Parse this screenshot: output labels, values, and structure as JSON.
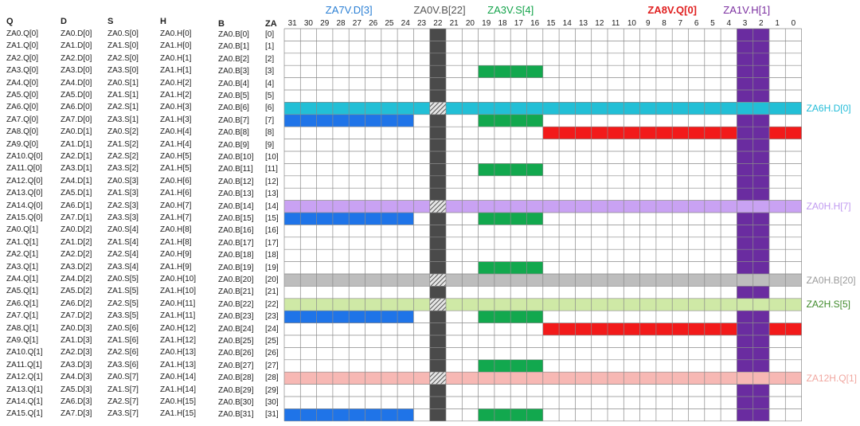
{
  "headers": {
    "q": "Q",
    "d": "D",
    "s": "S",
    "h": "H",
    "b": "B",
    "za": "ZA"
  },
  "columns": {
    "q": [
      "ZA0.Q[0]",
      "ZA1.Q[0]",
      "ZA2.Q[0]",
      "ZA3.Q[0]",
      "ZA4.Q[0]",
      "ZA5.Q[0]",
      "ZA6.Q[0]",
      "ZA7.Q[0]",
      "ZA8.Q[0]",
      "ZA9.Q[0]",
      "ZA10.Q[0]",
      "ZA11.Q[0]",
      "ZA12.Q[0]",
      "ZA13.Q[0]",
      "ZA14.Q[0]",
      "ZA15.Q[0]",
      "ZA0.Q[1]",
      "ZA1.Q[1]",
      "ZA2.Q[1]",
      "ZA3.Q[1]",
      "ZA4.Q[1]",
      "ZA5.Q[1]",
      "ZA6.Q[1]",
      "ZA7.Q[1]",
      "ZA8.Q[1]",
      "ZA9.Q[1]",
      "ZA10.Q[1]",
      "ZA11.Q[1]",
      "ZA12.Q[1]",
      "ZA13.Q[1]",
      "ZA14.Q[1]",
      "ZA15.Q[1]"
    ],
    "d": [
      "ZA0.D[0]",
      "ZA1.D[0]",
      "ZA2.D[0]",
      "ZA3.D[0]",
      "ZA4.D[0]",
      "ZA5.D[0]",
      "ZA6.D[0]",
      "ZA7.D[0]",
      "ZA0.D[1]",
      "ZA1.D[1]",
      "ZA2.D[1]",
      "ZA3.D[1]",
      "ZA4.D[1]",
      "ZA5.D[1]",
      "ZA6.D[1]",
      "ZA7.D[1]",
      "ZA0.D[2]",
      "ZA1.D[2]",
      "ZA2.D[2]",
      "ZA3.D[2]",
      "ZA4.D[2]",
      "ZA5.D[2]",
      "ZA6.D[2]",
      "ZA7.D[2]",
      "ZA0.D[3]",
      "ZA1.D[3]",
      "ZA2.D[3]",
      "ZA3.D[3]",
      "ZA4.D[3]",
      "ZA5.D[3]",
      "ZA6.D[3]",
      "ZA7.D[3]"
    ],
    "s": [
      "ZA0.S[0]",
      "ZA1.S[0]",
      "ZA2.S[0]",
      "ZA3.S[0]",
      "ZA0.S[1]",
      "ZA1.S[1]",
      "ZA2.S[1]",
      "ZA3.S[1]",
      "ZA0.S[2]",
      "ZA1.S[2]",
      "ZA2.S[2]",
      "ZA3.S[2]",
      "ZA0.S[3]",
      "ZA1.S[3]",
      "ZA2.S[3]",
      "ZA3.S[3]",
      "ZA0.S[4]",
      "ZA1.S[4]",
      "ZA2.S[4]",
      "ZA3.S[4]",
      "ZA0.S[5]",
      "ZA1.S[5]",
      "ZA2.S[5]",
      "ZA3.S[5]",
      "ZA0.S[6]",
      "ZA1.S[6]",
      "ZA2.S[6]",
      "ZA3.S[6]",
      "ZA0.S[7]",
      "ZA1.S[7]",
      "ZA2.S[7]",
      "ZA3.S[7]"
    ],
    "h": [
      "ZA0.H[0]",
      "ZA1.H[0]",
      "ZA0.H[1]",
      "ZA1.H[1]",
      "ZA0.H[2]",
      "ZA1.H[2]",
      "ZA0.H[3]",
      "ZA1.H[3]",
      "ZA0.H[4]",
      "ZA1.H[4]",
      "ZA0.H[5]",
      "ZA1.H[5]",
      "ZA0.H[6]",
      "ZA1.H[6]",
      "ZA0.H[7]",
      "ZA1.H[7]",
      "ZA0.H[8]",
      "ZA1.H[8]",
      "ZA0.H[9]",
      "ZA1.H[9]",
      "ZA0.H[10]",
      "ZA1.H[10]",
      "ZA0.H[11]",
      "ZA1.H[11]",
      "ZA0.H[12]",
      "ZA1.H[12]",
      "ZA0.H[13]",
      "ZA1.H[13]",
      "ZA0.H[14]",
      "ZA1.H[14]",
      "ZA0.H[15]",
      "ZA1.H[15]"
    ],
    "b": [
      "ZA0.B[0]",
      "ZA0.B[1]",
      "ZA0.B[2]",
      "ZA0.B[3]",
      "ZA0.B[4]",
      "ZA0.B[5]",
      "ZA0.B[6]",
      "ZA0.B[7]",
      "ZA0.B[8]",
      "ZA0.B[9]",
      "ZA0.B[10]",
      "ZA0.B[11]",
      "ZA0.B[12]",
      "ZA0.B[13]",
      "ZA0.B[14]",
      "ZA0.B[15]",
      "ZA0.B[16]",
      "ZA0.B[17]",
      "ZA0.B[18]",
      "ZA0.B[19]",
      "ZA0.B[20]",
      "ZA0.B[21]",
      "ZA0.B[22]",
      "ZA0.B[23]",
      "ZA0.B[24]",
      "ZA0.B[25]",
      "ZA0.B[26]",
      "ZA0.B[27]",
      "ZA0.B[28]",
      "ZA0.B[29]",
      "ZA0.B[30]",
      "ZA0.B[31]"
    ],
    "za": [
      "[0]",
      "[1]",
      "[2]",
      "[3]",
      "[4]",
      "[5]",
      "[6]",
      "[7]",
      "[8]",
      "[9]",
      "[10]",
      "[11]",
      "[12]",
      "[13]",
      "[14]",
      "[15]",
      "[16]",
      "[17]",
      "[18]",
      "[19]",
      "[20]",
      "[21]",
      "[22]",
      "[23]",
      "[24]",
      "[25]",
      "[26]",
      "[27]",
      "[28]",
      "[29]",
      "[30]",
      "[31]"
    ]
  },
  "bit_numbers": [
    "31",
    "30",
    "29",
    "28",
    "27",
    "26",
    "25",
    "24",
    "23",
    "22",
    "21",
    "20",
    "19",
    "18",
    "17",
    "16",
    "15",
    "14",
    "13",
    "12",
    "11",
    "10",
    "9",
    "8",
    "7",
    "6",
    "5",
    "4",
    "3",
    "2",
    "1",
    "0"
  ],
  "top_labels": [
    {
      "text": "ZA7V.D[3]",
      "color": "#2a7fd4",
      "bits": [
        31,
        24
      ]
    },
    {
      "text": "ZA0V.B[22]",
      "color": "#555555",
      "bits": [
        22,
        22
      ]
    },
    {
      "text": "ZA3V.S[4]",
      "color": "#13a34a",
      "bits": [
        19,
        16
      ]
    },
    {
      "text": "ZA8V.Q[0]",
      "color": "#e02020",
      "bits": [
        15,
        0
      ]
    },
    {
      "text": "ZA1V.H[1]",
      "color": "#7b2fa0",
      "bits": [
        3,
        2
      ]
    }
  ],
  "right_labels": [
    {
      "text": "ZA6H.D[0]",
      "color": "#22bcd8",
      "row": 6
    },
    {
      "text": "ZA0H.H[7]",
      "color": "#c09af0",
      "row": 14
    },
    {
      "text": "ZA0H.B[20]",
      "color": "#9a9a9a",
      "row": 20
    },
    {
      "text": "ZA2H.S[5]",
      "color": "#3f8a2a",
      "row": 22
    },
    {
      "text": "ZA12H.Q[1]",
      "color": "#f1a7a0",
      "row": 28
    }
  ],
  "colors": {
    "blue": "#1f74e8",
    "green": "#12a84e",
    "red": "#f21a1a",
    "purple": "#6a2ca0",
    "dark": "#4a4a4a",
    "cyan": "#22bfd6",
    "lavender": "#c9a2f3",
    "gray": "#bdbdbd",
    "lightgreen": "#cfe9a6",
    "pink": "#f7b8b4",
    "grid": "#8a8a8a"
  },
  "highlights": {
    "vertical_dark_bit": 22,
    "purple_bits": [
      3,
      2
    ],
    "green_rows": [
      3,
      7,
      11,
      15,
      19,
      23,
      27,
      31
    ],
    "green_bits": [
      19,
      16
    ],
    "blue_rows": [
      7,
      15,
      23,
      31
    ],
    "blue_bits": [
      31,
      24
    ],
    "red_rows": [
      8,
      24
    ],
    "red_bits": [
      15,
      0
    ],
    "horizontal_rows": [
      {
        "row": 6,
        "color": "cyan"
      },
      {
        "row": 14,
        "color": "lavender"
      },
      {
        "row": 20,
        "color": "gray"
      },
      {
        "row": 22,
        "color": "lightgreen"
      },
      {
        "row": 28,
        "color": "pink"
      }
    ]
  }
}
